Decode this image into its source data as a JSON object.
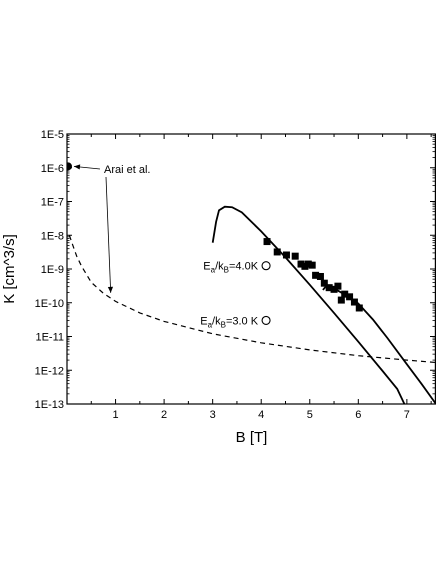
{
  "chart_data": {
    "type": "scatter",
    "xlabel": "B [T]",
    "ylabel": "K [cm^3/s]",
    "xlim": [
      0,
      7.6
    ],
    "ylim_exponents": [
      -13,
      -5
    ],
    "y_scale": "log",
    "x_ticks": [
      {
        "value": 1,
        "label": "1"
      },
      {
        "value": 2,
        "label": "2"
      },
      {
        "value": 3,
        "label": "3"
      },
      {
        "value": 4,
        "label": "4"
      },
      {
        "value": 5,
        "label": "5"
      },
      {
        "value": 6,
        "label": "6"
      },
      {
        "value": 7,
        "label": "7"
      }
    ],
    "y_ticks": [
      {
        "exp": -13,
        "label": "1E-13"
      },
      {
        "exp": -12,
        "label": "1E-12"
      },
      {
        "exp": -11,
        "label": "1E-11"
      },
      {
        "exp": -10,
        "label": "1E-10"
      },
      {
        "exp": -9,
        "label": "1E-9"
      },
      {
        "exp": -8,
        "label": "1E-8"
      },
      {
        "exp": -7,
        "label": "1E-7"
      },
      {
        "exp": -6,
        "label": "1E-6"
      },
      {
        "exp": -5,
        "label": "1E-5"
      }
    ],
    "grid": false,
    "series": [
      {
        "marker": "filled-square",
        "points": [
          {
            "x": 4.12,
            "y": 6.5e-09
          },
          {
            "x": 4.33,
            "y": 3.2e-09
          },
          {
            "x": 4.52,
            "y": 2.6e-09
          },
          {
            "x": 4.7,
            "y": 2.4e-09
          },
          {
            "x": 4.82,
            "y": 1.4e-09
          },
          {
            "x": 4.9,
            "y": 1.2e-09
          },
          {
            "x": 4.97,
            "y": 1.4e-09
          },
          {
            "x": 5.05,
            "y": 1.3e-09
          },
          {
            "x": 5.12,
            "y": 6.5e-10
          },
          {
            "x": 5.22,
            "y": 6e-10
          },
          {
            "x": 5.3,
            "y": 3.8e-10
          },
          {
            "x": 5.4,
            "y": 2.8e-10
          },
          {
            "x": 5.5,
            "y": 2.5e-10
          },
          {
            "x": 5.58,
            "y": 3.1e-10
          },
          {
            "x": 5.65,
            "y": 1.2e-10
          },
          {
            "x": 5.72,
            "y": 1.8e-10
          },
          {
            "x": 5.82,
            "y": 1.5e-10
          },
          {
            "x": 5.92,
            "y": 1.05e-10
          },
          {
            "x": 6.02,
            "y": 7e-11
          }
        ]
      },
      {
        "marker": "filled-circle",
        "points": [
          {
            "x": 0.02,
            "y": 1.1e-06
          }
        ]
      },
      {
        "marker": "open-circle",
        "points": [
          {
            "x": 4.1,
            "y": 1.25e-09
          },
          {
            "x": 4.1,
            "y": 3e-11
          }
        ]
      },
      {
        "line": "dashed",
        "points": [
          {
            "x": 0.05,
            "y": 1e-08
          },
          {
            "x": 0.1,
            "y": 6e-09
          },
          {
            "x": 0.2,
            "y": 2.4e-09
          },
          {
            "x": 0.3,
            "y": 1.2e-09
          },
          {
            "x": 0.5,
            "y": 4e-10
          },
          {
            "x": 0.75,
            "y": 1.9e-10
          },
          {
            "x": 1.0,
            "y": 1.1e-10
          },
          {
            "x": 1.5,
            "y": 5e-11
          },
          {
            "x": 2.0,
            "y": 2.8e-11
          },
          {
            "x": 3.0,
            "y": 1.2e-11
          },
          {
            "x": 4.0,
            "y": 6.5e-12
          },
          {
            "x": 5.0,
            "y": 4e-12
          },
          {
            "x": 6.0,
            "y": 2.7e-12
          },
          {
            "x": 7.0,
            "y": 2e-12
          },
          {
            "x": 7.6,
            "y": 1.7e-12
          }
        ]
      },
      {
        "line": "solid",
        "points": [
          {
            "x": 3.0,
            "y": 6e-09
          },
          {
            "x": 3.07,
            "y": 2.5e-08
          },
          {
            "x": 3.13,
            "y": 5.5e-08
          },
          {
            "x": 3.25,
            "y": 7e-08
          },
          {
            "x": 3.4,
            "y": 6.8e-08
          },
          {
            "x": 3.6,
            "y": 4.8e-08
          },
          {
            "x": 4.0,
            "y": 1.3e-08
          },
          {
            "x": 4.5,
            "y": 2.2e-09
          },
          {
            "x": 5.0,
            "y": 3.4e-10
          },
          {
            "x": 5.5,
            "y": 5e-11
          },
          {
            "x": 6.0,
            "y": 7e-12
          },
          {
            "x": 6.5,
            "y": 9.5e-13
          },
          {
            "x": 6.8,
            "y": 2.8e-13
          },
          {
            "x": 6.95,
            "y": 1e-13
          }
        ]
      },
      {
        "line": "solid",
        "points": [
          {
            "x": 5.27,
            "y": 2.4e-10
          },
          {
            "x": 5.35,
            "y": 3.3e-10
          },
          {
            "x": 5.43,
            "y": 3e-10
          },
          {
            "x": 5.6,
            "y": 2.2e-10
          },
          {
            "x": 5.8,
            "y": 1.5e-10
          },
          {
            "x": 6.0,
            "y": 9.5e-11
          },
          {
            "x": 6.3,
            "y": 3.2e-11
          },
          {
            "x": 6.6,
            "y": 9e-12
          },
          {
            "x": 7.0,
            "y": 1.5e-12
          },
          {
            "x": 7.3,
            "y": 4e-13
          },
          {
            "x": 7.6,
            "y": 1e-13
          }
        ]
      }
    ],
    "annotations": [
      {
        "text": "Arai et al.",
        "arrows_to": [
          {
            "x": 0.02,
            "y": 1.1e-06
          },
          {
            "x": 0.9,
            "y": 1.3e-10
          }
        ]
      },
      {
        "base": "E",
        "sub1": "a",
        "mid": "/k",
        "sub2": "B",
        "tail": "=4.0K",
        "near": {
          "x": 4.1,
          "y": 1.25e-09
        }
      },
      {
        "base": "E",
        "sub1": "a",
        "mid": "/k",
        "sub2": "B",
        "tail": "=3.0 K",
        "near": {
          "x": 4.1,
          "y": 3e-11
        }
      }
    ]
  }
}
